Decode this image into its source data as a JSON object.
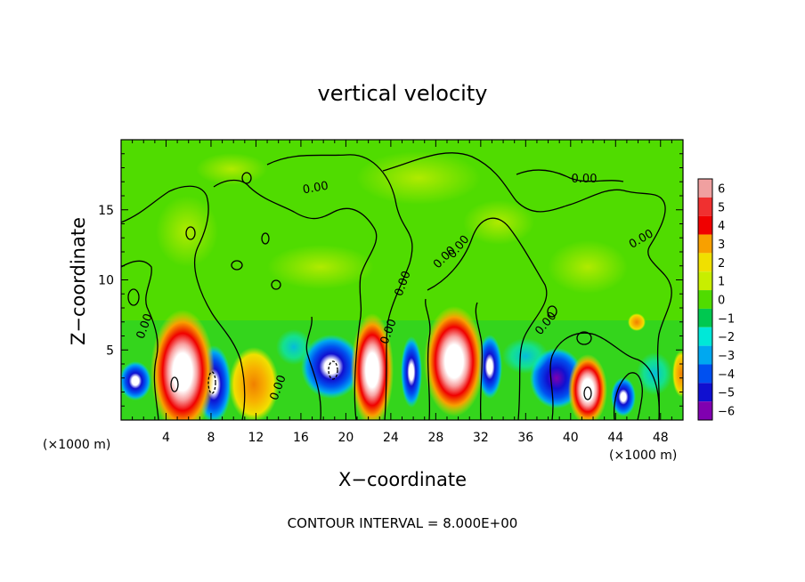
{
  "chart_data": {
    "type": "heatmap",
    "title": "vertical velocity",
    "xlabel": "X−coordinate",
    "ylabel": "Z−coordinate",
    "x_unit_left": "(×1000 m)",
    "x_unit_right": "(×1000 m)",
    "xlim": [
      0,
      50
    ],
    "ylim": [
      0,
      20
    ],
    "x_ticks": [
      4,
      8,
      12,
      16,
      20,
      24,
      28,
      32,
      36,
      40,
      44,
      48
    ],
    "y_ticks": [
      5,
      10,
      15
    ],
    "footer": "CONTOUR INTERVAL = 8.000E+00",
    "contour_labels": [
      "0.00",
      "0.00",
      "0.00",
      "0.00",
      "0.00",
      "0.00",
      "0.00",
      "0.00",
      "0.00",
      "0.00"
    ],
    "colorbar": {
      "levels": [
        "6",
        "5",
        "4",
        "3",
        "2",
        "1",
        "0",
        "−1",
        "−2",
        "−3",
        "−4",
        "−5",
        "−6"
      ],
      "colors": [
        "#f0a0a0",
        "#f03030",
        "#f00000",
        "#f8a000",
        "#f0e000",
        "#c8ee00",
        "#50dc00",
        "#00c850",
        "#00e8d8",
        "#00a8f0",
        "#0050f0",
        "#1010d0",
        "#8000b0"
      ]
    },
    "updrafts": [
      {
        "x": 4.8,
        "z": 3.0,
        "w": 6
      },
      {
        "x": 8.2,
        "z": 2.6,
        "w": -6
      },
      {
        "x": 11.5,
        "z": 2.6,
        "w": 3
      },
      {
        "x": 18.5,
        "z": 3.6,
        "w": -6
      },
      {
        "x": 22.0,
        "z": 3.6,
        "w": 6
      },
      {
        "x": 26.3,
        "z": 4.0,
        "w": -3
      },
      {
        "x": 29.3,
        "z": 3.6,
        "w": 6
      },
      {
        "x": 32.8,
        "z": 3.6,
        "w": -6
      },
      {
        "x": 38.8,
        "z": 2.6,
        "w": -5
      },
      {
        "x": 41.3,
        "z": 2.2,
        "w": 6
      },
      {
        "x": 44.5,
        "z": 1.6,
        "w": -6
      },
      {
        "x": 49.6,
        "z": 3.0,
        "w": 3
      }
    ]
  }
}
